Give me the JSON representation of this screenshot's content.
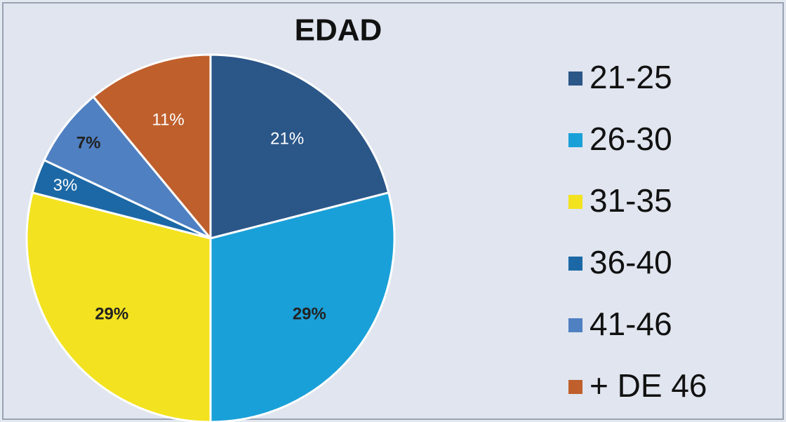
{
  "chart_data": {
    "type": "pie",
    "title": "EDAD",
    "categories": [
      "21-25",
      "26-30",
      "31-35",
      "36-40",
      "41-46",
      "+ DE 46"
    ],
    "values": [
      21,
      29,
      29,
      3,
      7,
      11
    ],
    "value_labels": [
      "21%",
      "29%",
      "29%",
      "3%",
      "7%",
      "11%"
    ],
    "colors": [
      "#2b5688",
      "#1aa0d8",
      "#f3e21f",
      "#1c68a6",
      "#4f80c2",
      "#bf5f2c"
    ],
    "legend": "right"
  }
}
